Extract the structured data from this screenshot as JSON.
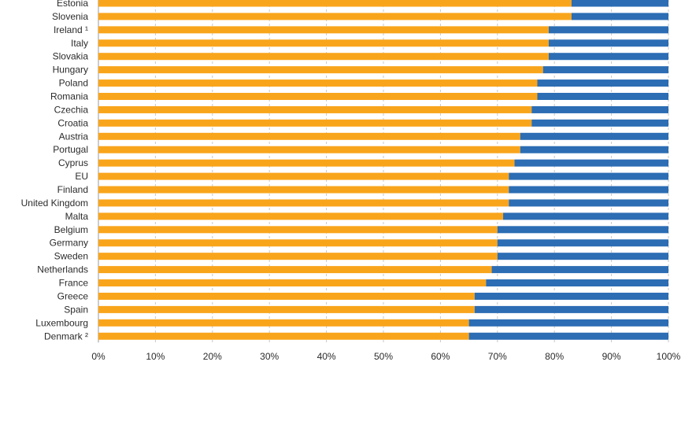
{
  "chart_data": {
    "type": "bar",
    "orientation": "horizontal",
    "stacked": true,
    "title": "",
    "xlabel": "",
    "ylabel": "",
    "xlim": [
      0,
      100
    ],
    "x_ticks": [
      "0%",
      "10%",
      "20%",
      "30%",
      "40%",
      "50%",
      "60%",
      "70%",
      "80%",
      "90%",
      "100%"
    ],
    "grid": "vertical dashed",
    "legend": "none visible",
    "categories": [
      "Estonia",
      "Slovenia",
      "Ireland ¹",
      "Italy",
      "Slovakia",
      "Hungary",
      "Poland",
      "Romania",
      "Czechia",
      "Croatia",
      "Austria",
      "Portugal",
      "Cyprus",
      "EU",
      "Finland",
      "United Kingdom",
      "Malta",
      "Belgium",
      "Germany",
      "Sweden",
      "Netherlands",
      "France",
      "Greece",
      "Spain",
      "Luxembourg",
      "Denmark ²"
    ],
    "series": [
      {
        "color": "#f9a51b",
        "values": [
          83,
          83,
          79,
          79,
          79,
          78,
          77,
          77,
          76,
          76,
          74,
          74,
          73,
          72,
          72,
          72,
          71,
          70,
          70,
          70,
          69,
          68,
          66,
          66,
          65,
          65
        ]
      },
      {
        "color": "#2c6db4",
        "values": [
          17,
          17,
          21,
          21,
          21,
          22,
          23,
          23,
          24,
          24,
          26,
          26,
          27,
          28,
          28,
          28,
          29,
          30,
          30,
          30,
          31,
          32,
          34,
          34,
          35,
          35
        ]
      }
    ]
  }
}
